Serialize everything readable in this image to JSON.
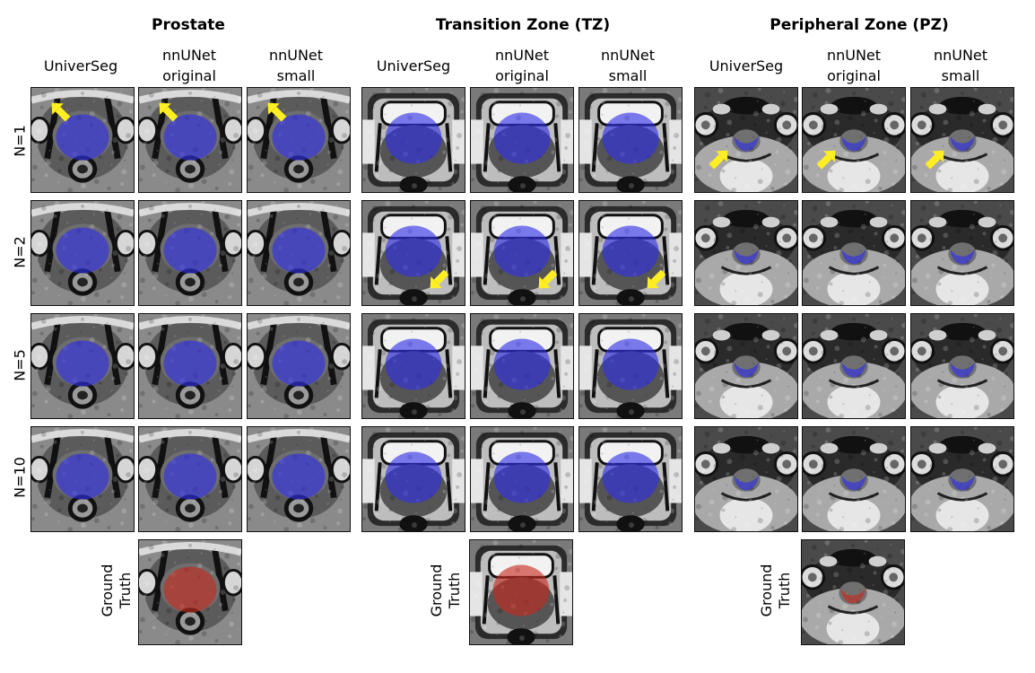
{
  "groups": [
    {
      "title": "Prostate",
      "columns": [
        "UniverSeg",
        "nnUNet\noriginal",
        "nnUNet\nsmall"
      ],
      "ground_truth_label": "Ground\nTruth",
      "arrows_rows": [
        "N=1"
      ]
    },
    {
      "title": "Transition Zone (TZ)",
      "columns": [
        "UniverSeg",
        "nnUNet\noriginal",
        "nnUNet\nsmall"
      ],
      "ground_truth_label": "Ground\nTruth",
      "arrows_rows": [
        "N=2"
      ]
    },
    {
      "title": "Peripheral Zone (PZ)",
      "columns": [
        "UniverSeg",
        "nnUNet\noriginal",
        "nnUNet\nsmall"
      ],
      "ground_truth_label": "Ground\nTruth",
      "arrows_rows": [
        "N=1"
      ]
    }
  ],
  "rows": [
    "N=1",
    "N=2",
    "N=5",
    "N=10"
  ],
  "colors": {
    "prediction": "#2e2ee6",
    "ground_truth": "#c62a1e",
    "arrow": "#ffee22"
  }
}
